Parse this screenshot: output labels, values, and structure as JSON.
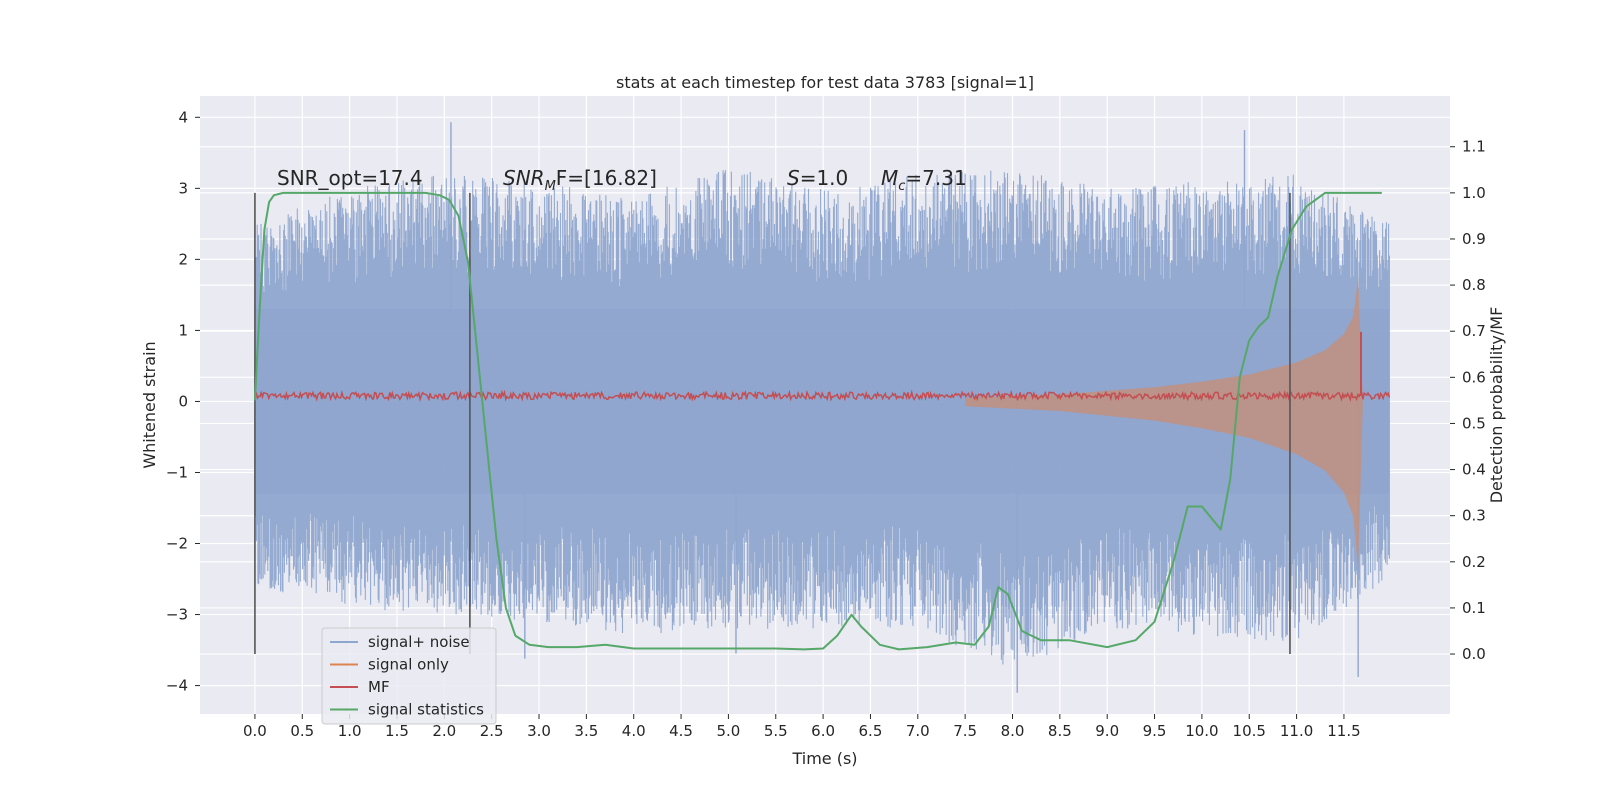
{
  "chart_data": {
    "type": "line",
    "title": "stats at each timestep for test data 3783 [signal=1]",
    "xlabel": "Time (s)",
    "ylabel": "Whitened strain",
    "y2label": "Detection probability/MF",
    "xlim": [
      -0.58,
      12.62
    ],
    "ylim": [
      -4.4,
      4.3
    ],
    "y2lim": [
      -0.13,
      1.21
    ],
    "x_ticks": [
      0.0,
      0.5,
      1.0,
      1.5,
      2.0,
      2.5,
      3.0,
      3.5,
      4.0,
      4.5,
      5.0,
      5.5,
      6.0,
      6.5,
      7.0,
      7.5,
      8.0,
      8.5,
      9.0,
      9.5,
      10.0,
      10.5,
      11.0,
      11.5
    ],
    "x_tick_labels": [
      "0.0",
      "0.5",
      "1.0",
      "1.5",
      "2.0",
      "2.5",
      "3.0",
      "3.5",
      "4.0",
      "4.5",
      "5.0",
      "5.5",
      "6.0",
      "6.5",
      "7.0",
      "7.5",
      "8.0",
      "8.5",
      "9.0",
      "9.5",
      "10.0",
      "10.5",
      "11.0",
      "11.5"
    ],
    "y_ticks": [
      -4,
      -3,
      -2,
      -1,
      0,
      1,
      2,
      3,
      4
    ],
    "y_tick_labels": [
      "−4",
      "−3",
      "−2",
      "−1",
      "0",
      "1",
      "2",
      "3",
      "4"
    ],
    "y2_ticks": [
      0.0,
      0.1,
      0.2,
      0.3,
      0.4,
      0.5,
      0.6,
      0.7,
      0.8,
      0.9,
      1.0,
      1.1
    ],
    "y2_tick_labels": [
      "0.0",
      "0.1",
      "0.2",
      "0.3",
      "0.4",
      "0.5",
      "0.6",
      "0.7",
      "0.8",
      "0.9",
      "1.0",
      "1.1"
    ],
    "grid": true,
    "legend_position": "lower-left",
    "time_range": [
      0.0,
      11.98
    ],
    "colors": {
      "signal_noise": "#8fa6cf",
      "signal_only": "#dd8452",
      "mf": "#c44e52",
      "signal_statistics": "#55a868",
      "vlines": "#555555",
      "background": "#eaeaf2"
    },
    "noise_envelope": {
      "x": [
        0.0,
        1.0,
        2.0,
        3.0,
        4.0,
        5.0,
        6.0,
        7.0,
        8.0,
        9.0,
        10.0,
        11.0,
        11.98
      ],
      "upper": [
        2.5,
        3.0,
        3.2,
        3.1,
        2.9,
        3.3,
        3.0,
        3.2,
        3.3,
        3.0,
        3.1,
        3.2,
        2.5
      ],
      "lower": [
        -2.6,
        -2.9,
        -3.0,
        -3.1,
        -3.3,
        -3.2,
        -3.2,
        -3.2,
        -3.8,
        -3.2,
        -3.3,
        -3.4,
        -2.5
      ]
    },
    "noise_spikes": [
      {
        "x": 2.07,
        "y": 3.93
      },
      {
        "x": 10.45,
        "y": 3.82
      },
      {
        "x": 11.65,
        "y": -3.88
      },
      {
        "x": 8.05,
        "y": -4.1
      },
      {
        "x": 2.85,
        "y": -3.62
      },
      {
        "x": 5.08,
        "y": -3.55
      }
    ],
    "signal_only_envelope": {
      "x": [
        7.5,
        8.5,
        9.5,
        10.0,
        10.5,
        11.0,
        11.3,
        11.5,
        11.6,
        11.65,
        11.7
      ],
      "amplitude": [
        0.05,
        0.1,
        0.2,
        0.28,
        0.38,
        0.55,
        0.72,
        0.95,
        1.2,
        1.75,
        0.0
      ]
    },
    "series": [
      {
        "name": "signal statistics",
        "axis": "right",
        "x": [
          0.0,
          0.05,
          0.1,
          0.15,
          0.2,
          0.3,
          0.5,
          1.0,
          1.5,
          1.8,
          1.95,
          2.05,
          2.15,
          2.25,
          2.35,
          2.45,
          2.55,
          2.65,
          2.75,
          2.9,
          3.1,
          3.4,
          3.7,
          4.0,
          4.5,
          5.0,
          5.5,
          5.8,
          6.0,
          6.15,
          6.3,
          6.4,
          6.6,
          6.8,
          7.1,
          7.4,
          7.6,
          7.75,
          7.85,
          7.95,
          8.1,
          8.3,
          8.6,
          9.0,
          9.3,
          9.5,
          9.7,
          9.85,
          10.0,
          10.2,
          10.3,
          10.4,
          10.5,
          10.6,
          10.7,
          10.8,
          10.95,
          11.1,
          11.3,
          11.5,
          11.7,
          11.9
        ],
        "values": [
          0.55,
          0.75,
          0.92,
          0.98,
          0.995,
          1.0,
          1.0,
          1.0,
          1.0,
          1.0,
          0.995,
          0.985,
          0.95,
          0.85,
          0.65,
          0.45,
          0.25,
          0.1,
          0.04,
          0.02,
          0.015,
          0.015,
          0.02,
          0.012,
          0.012,
          0.012,
          0.012,
          0.01,
          0.012,
          0.04,
          0.085,
          0.06,
          0.02,
          0.01,
          0.015,
          0.025,
          0.02,
          0.06,
          0.145,
          0.13,
          0.05,
          0.03,
          0.03,
          0.015,
          0.03,
          0.07,
          0.2,
          0.32,
          0.32,
          0.27,
          0.38,
          0.6,
          0.68,
          0.71,
          0.73,
          0.82,
          0.92,
          0.97,
          1.0,
          1.0,
          1.0,
          1.0
        ]
      },
      {
        "name": "MF",
        "axis": "left",
        "baseline": 0.08,
        "noise_amplitude": 0.05,
        "spike": {
          "x": 11.68,
          "y": 0.98
        }
      }
    ],
    "vlines": [
      0.0,
      2.27,
      10.93
    ],
    "annotations": [
      {
        "type": "plain",
        "text": "SNR_opt=17.4"
      },
      {
        "type": "subscript",
        "base": "SNR",
        "sub": "M",
        "rest": "F=[16.82]"
      },
      {
        "type": "italic",
        "italic": "S",
        "rest": "=1.0"
      },
      {
        "type": "subscript",
        "base": "M",
        "sub": "c",
        "rest": "=7.31"
      }
    ],
    "legend": [
      {
        "label": "signal+ noise",
        "key": "signal_noise"
      },
      {
        "label": "signal only",
        "key": "signal_only"
      },
      {
        "label": "MF",
        "key": "mf"
      },
      {
        "label": "signal statistics",
        "key": "signal_statistics"
      }
    ]
  }
}
